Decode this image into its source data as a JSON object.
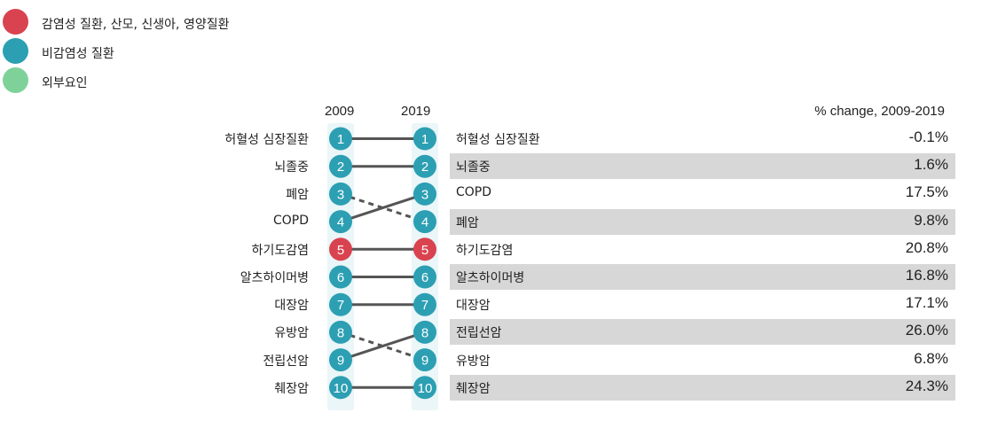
{
  "legend": [
    {
      "label": "감염성 질환, 산모, 신생아, 영양질환",
      "color": "#d9434f"
    },
    {
      "label": "비감염성 질환",
      "color": "#2c9fb3"
    },
    {
      "label": "외부요인",
      "color": "#7fd19a"
    }
  ],
  "header": {
    "year_left": "2009",
    "year_right": "2019",
    "pct_title": "% change, 2009-2019"
  },
  "colors": {
    "noncommunicable": "#2c9fb3",
    "communicable": "#d9434f",
    "line": "#555555",
    "band": "#d7d7d7"
  },
  "chart_data": {
    "type": "bump",
    "x": [
      "2009",
      "2019"
    ],
    "series": [
      {
        "name": "허혈성 심장질환",
        "rank_2009": 1,
        "rank_2019": 1,
        "group": "noncommunicable",
        "pct_change": "-0.1%"
      },
      {
        "name": "뇌졸중",
        "rank_2009": 2,
        "rank_2019": 2,
        "group": "noncommunicable",
        "pct_change": "1.6%"
      },
      {
        "name": "폐암",
        "rank_2009": 3,
        "rank_2019": 4,
        "group": "noncommunicable",
        "pct_change": "9.8%"
      },
      {
        "name": "COPD",
        "rank_2009": 4,
        "rank_2019": 3,
        "group": "noncommunicable",
        "pct_change": "17.5%"
      },
      {
        "name": "하기도감염",
        "rank_2009": 5,
        "rank_2019": 5,
        "group": "communicable",
        "pct_change": "20.8%"
      },
      {
        "name": "알츠하이머병",
        "rank_2009": 6,
        "rank_2019": 6,
        "group": "noncommunicable",
        "pct_change": "16.8%"
      },
      {
        "name": "대장암",
        "rank_2009": 7,
        "rank_2019": 7,
        "group": "noncommunicable",
        "pct_change": "17.1%"
      },
      {
        "name": "유방암",
        "rank_2009": 8,
        "rank_2019": 9,
        "group": "noncommunicable",
        "pct_change": "6.8%"
      },
      {
        "name": "전립선암",
        "rank_2009": 9,
        "rank_2019": 8,
        "group": "noncommunicable",
        "pct_change": "26.0%"
      },
      {
        "name": "췌장암",
        "rank_2009": 10,
        "rank_2019": 10,
        "group": "noncommunicable",
        "pct_change": "24.3%"
      }
    ],
    "left_labels": [
      "허혈성 심장질환",
      "뇌졸중",
      "폐암",
      "COPD",
      "하기도감염",
      "알츠하이머병",
      "대장암",
      "유방암",
      "전립선암",
      "췌장암"
    ],
    "right_rows": [
      {
        "label": "허혈성 심장질환",
        "pct": "-0.1%"
      },
      {
        "label": "뇌졸중",
        "pct": "1.6%"
      },
      {
        "label": "COPD",
        "pct": "17.5%"
      },
      {
        "label": "폐암",
        "pct": "9.8%"
      },
      {
        "label": "하기도감염",
        "pct": "20.8%"
      },
      {
        "label": "알츠하이머병",
        "pct": "16.8%"
      },
      {
        "label": "대장암",
        "pct": "17.1%"
      },
      {
        "label": "전립선암",
        "pct": "26.0%"
      },
      {
        "label": "유방암",
        "pct": "6.8%"
      },
      {
        "label": "췌장암",
        "pct": "24.3%"
      }
    ]
  }
}
